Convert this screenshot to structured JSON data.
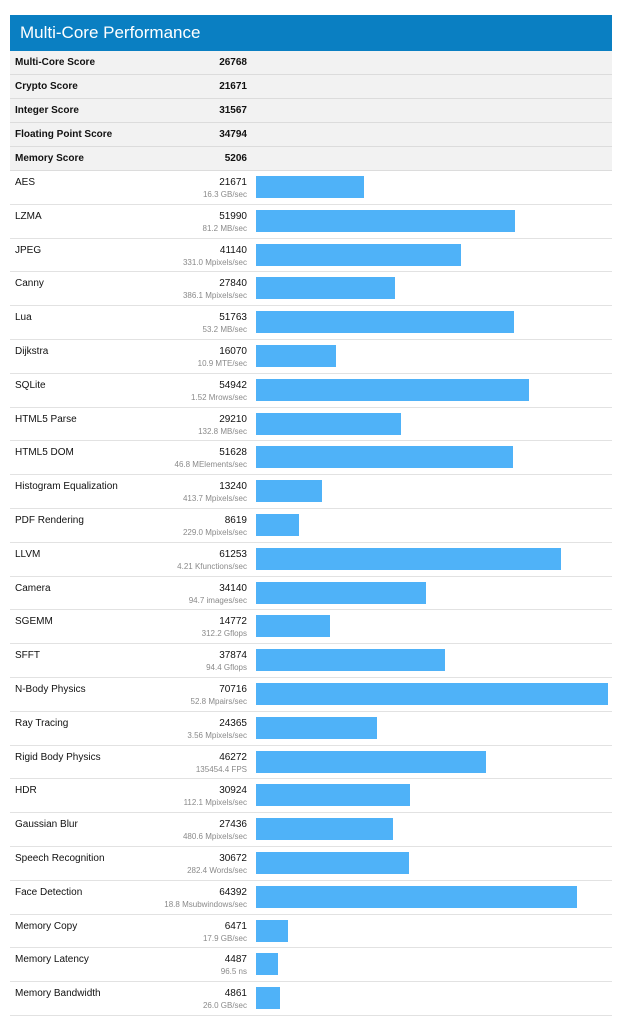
{
  "title": "Multi-Core Performance",
  "summary": [
    {
      "name": "Multi-Core Score",
      "score": "26768"
    },
    {
      "name": "Crypto Score",
      "score": "21671"
    },
    {
      "name": "Integer Score",
      "score": "31567"
    },
    {
      "name": "Floating Point Score",
      "score": "34794"
    },
    {
      "name": "Memory Score",
      "score": "5206"
    }
  ],
  "chart_data": {
    "type": "bar",
    "orientation": "horizontal",
    "title": "Multi-Core Performance",
    "xlim": [
      0,
      70716
    ],
    "categories": [
      "AES",
      "LZMA",
      "JPEG",
      "Canny",
      "Lua",
      "Dijkstra",
      "SQLite",
      "HTML5 Parse",
      "HTML5 DOM",
      "Histogram Equalization",
      "PDF Rendering",
      "LLVM",
      "Camera",
      "SGEMM",
      "SFFT",
      "N-Body Physics",
      "Ray Tracing",
      "Rigid Body Physics",
      "HDR",
      "Gaussian Blur",
      "Speech Recognition",
      "Face Detection",
      "Memory Copy",
      "Memory Latency",
      "Memory Bandwidth"
    ],
    "values": [
      21671,
      51990,
      41140,
      27840,
      51763,
      16070,
      54942,
      29210,
      51628,
      13240,
      8619,
      61253,
      34140,
      14772,
      37874,
      70716,
      24365,
      46272,
      30924,
      27436,
      30672,
      64392,
      6471,
      4487,
      4861
    ],
    "rates": [
      "16.3 GB/sec",
      "81.2 MB/sec",
      "331.0 Mpixels/sec",
      "386.1 Mpixels/sec",
      "53.2 MB/sec",
      "10.9 MTE/sec",
      "1.52 Mrows/sec",
      "132.8 MB/sec",
      "46.8 MElements/sec",
      "413.7 Mpixels/sec",
      "229.0 Mpixels/sec",
      "4.21 Kfunctions/sec",
      "94.7 images/sec",
      "312.2 Gflops",
      "94.4 Gflops",
      "52.8 Mpairs/sec",
      "3.56 Mpixels/sec",
      "135454.4 FPS",
      "112.1 Mpixels/sec",
      "480.6 Mpixels/sec",
      "282.4 Words/sec",
      "18.8 Msubwindows/sec",
      "17.9 GB/sec",
      "96.5 ns",
      "26.0 GB/sec"
    ]
  },
  "colors": {
    "header": "#0a7fc2",
    "bar": "#4fb2f8"
  }
}
